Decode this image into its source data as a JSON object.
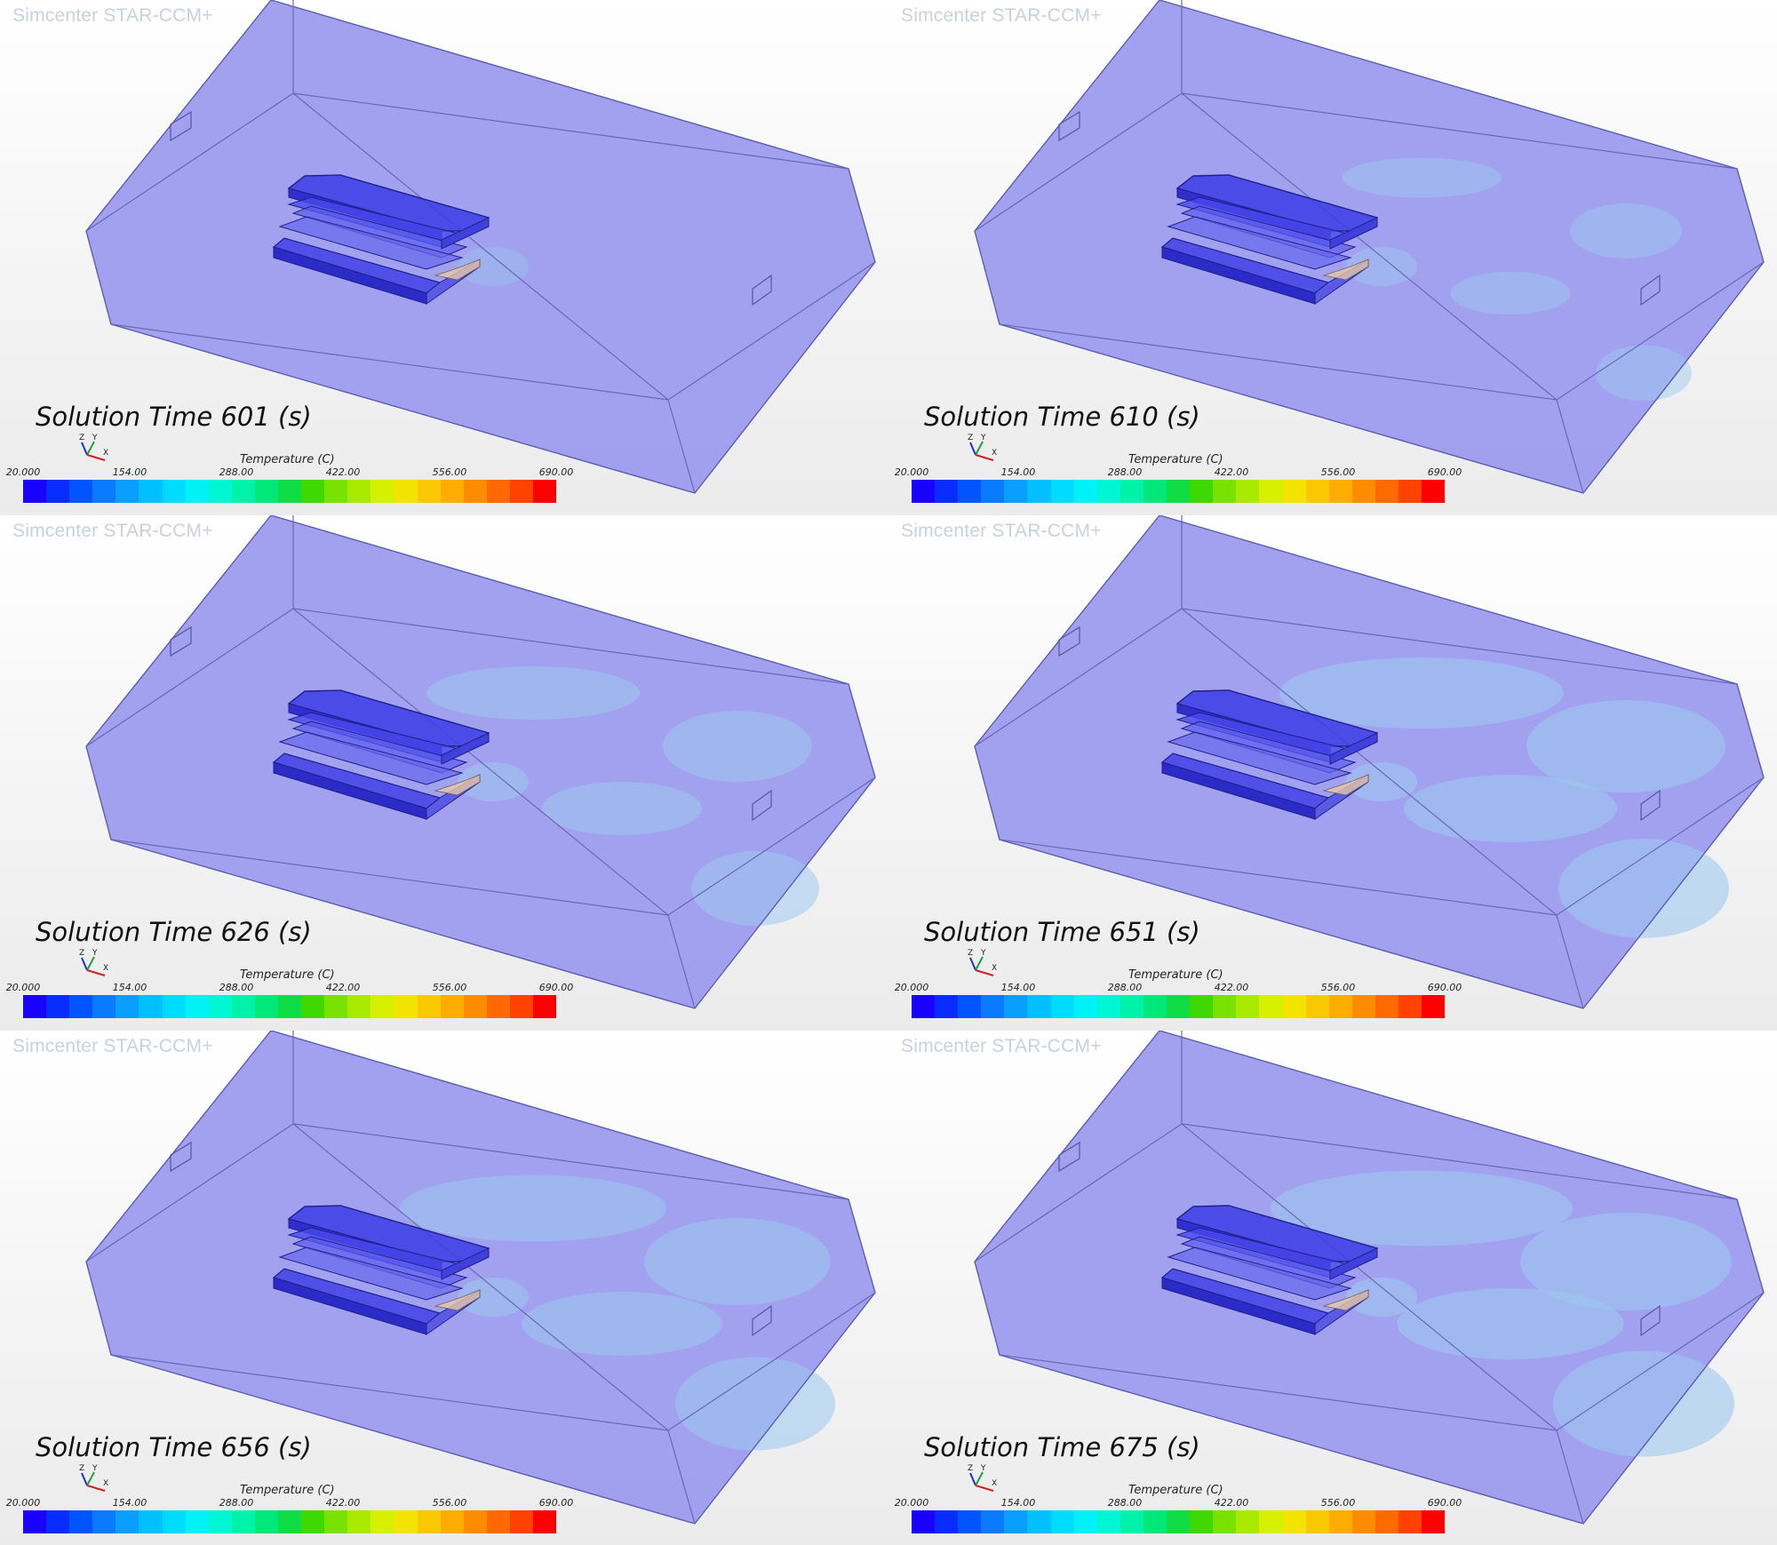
{
  "app": {
    "watermark": "Simcenter STAR-CCM+"
  },
  "panels": [
    {
      "solution_time_label": "Solution Time 601 (s)"
    },
    {
      "solution_time_label": "Solution Time 610 (s)"
    },
    {
      "solution_time_label": "Solution Time 626 (s)"
    },
    {
      "solution_time_label": "Solution Time 651 (s)"
    },
    {
      "solution_time_label": "Solution Time 656 (s)"
    },
    {
      "solution_time_label": "Solution Time 675 (s)"
    }
  ],
  "legend": {
    "title": "Temperature (C)",
    "min": 20.0,
    "max": 690.0,
    "ticks": [
      "20.000",
      "154.00",
      "288.00",
      "422.00",
      "556.00",
      "690.00"
    ],
    "colormap": [
      "#1a00ff",
      "#0a2dff",
      "#0055ff",
      "#0a7bff",
      "#0a9eff",
      "#00c0ff",
      "#00dcff",
      "#00f2f6",
      "#00f5d2",
      "#00f2a8",
      "#00e87a",
      "#10dc46",
      "#3fd800",
      "#7ae200",
      "#aaea00",
      "#d6f000",
      "#f2e400",
      "#fac800",
      "#ffac00",
      "#ff8c00",
      "#ff6a00",
      "#ff4200",
      "#ff0000"
    ]
  },
  "triad": {
    "axes": [
      "Z",
      "Y",
      "X"
    ]
  },
  "colors": {
    "domain_fill": "#9898ee",
    "domain_edge": "#5a5aa8",
    "battery_fill": "#3b3be0",
    "warm_plume": "#9ec8f0"
  }
}
